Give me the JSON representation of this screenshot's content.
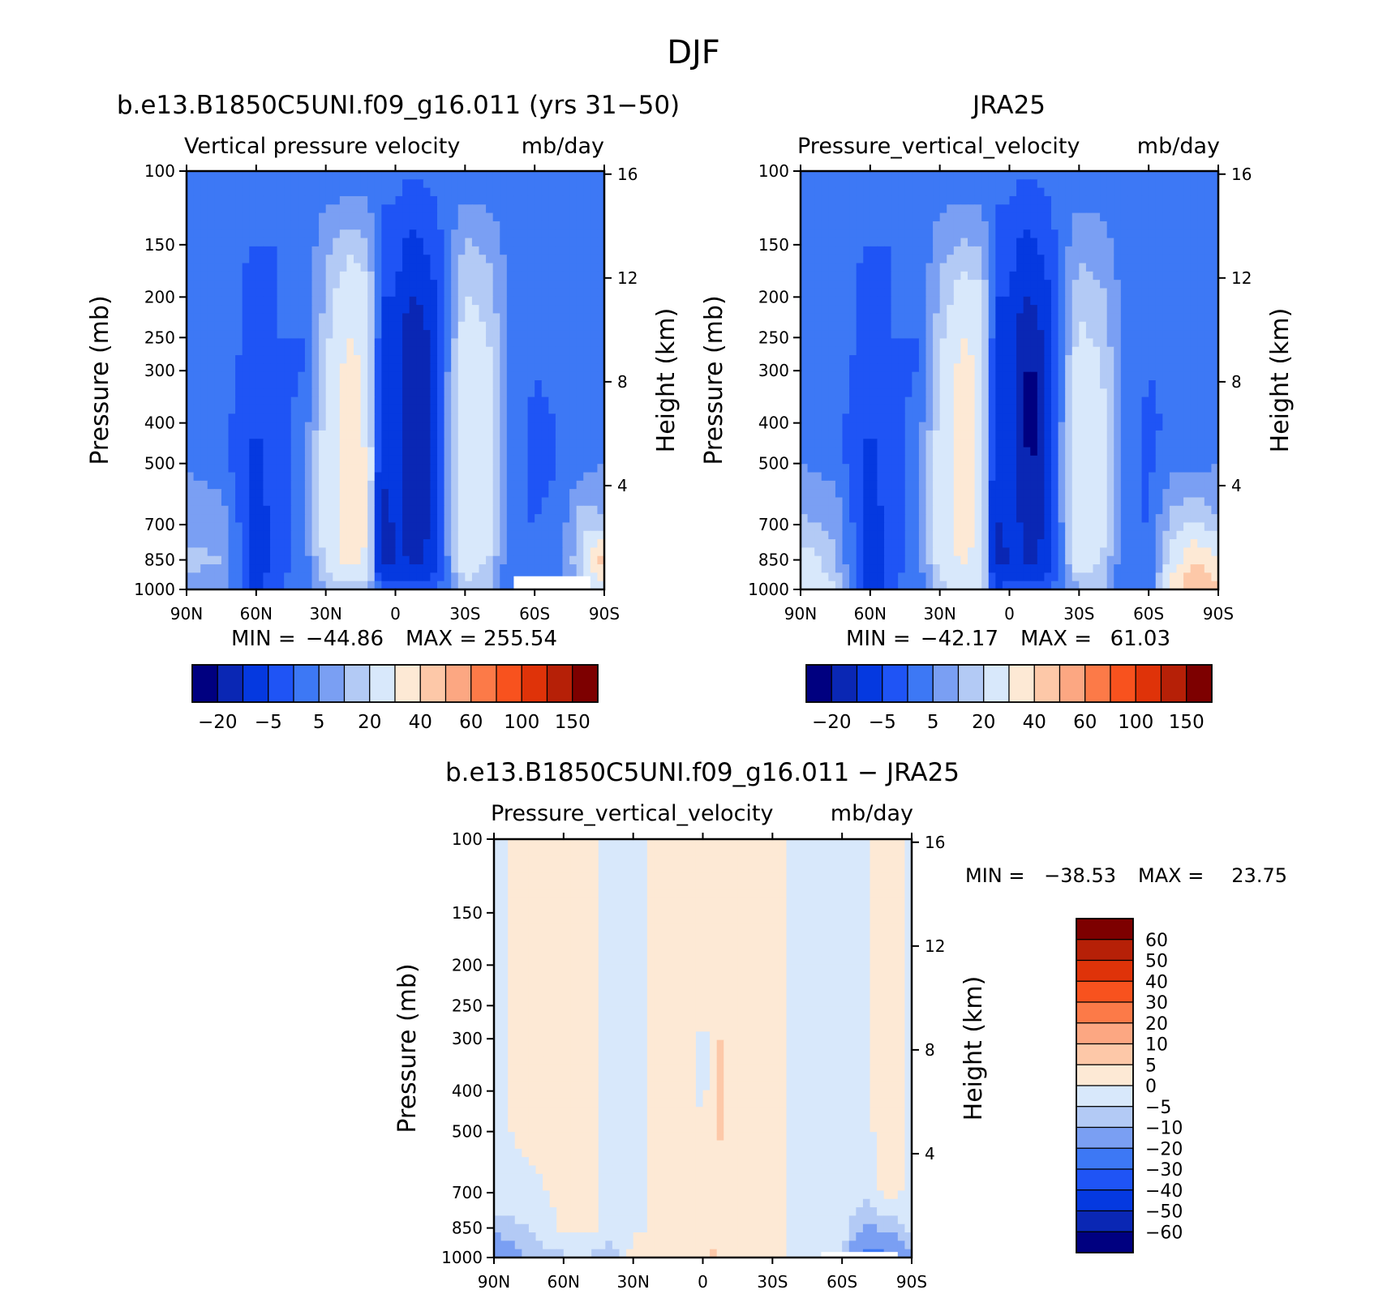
{
  "figure": {
    "title": "DJF",
    "season": "DJF"
  },
  "palettes": {
    "abs": [
      "#000080",
      "#0a27b4",
      "#0539e0",
      "#1f54f5",
      "#3d78f5",
      "#7a9ff3",
      "#b3caf5",
      "#d8e8fb",
      "#fde9d5",
      "#fdc8a8",
      "#fca782",
      "#fc7a48",
      "#f8521e",
      "#df3309",
      "#b62007",
      "#7d0000"
    ],
    "diff": [
      "#000080",
      "#0a27b4",
      "#0539e0",
      "#1f54f5",
      "#3d78f5",
      "#7a9ff3",
      "#b3caf5",
      "#d8e8fb",
      "#fde9d5",
      "#fdc8a8",
      "#fca782",
      "#fc7a48",
      "#f8521e",
      "#df3309",
      "#b62007",
      "#7d0000"
    ]
  },
  "chart_data": [
    {
      "id": "model",
      "type": "heatmap",
      "title": "b.e13.B1850C5UNI.f09_g16.011 (yrs 31−50)",
      "variable": "Vertical pressure velocity",
      "units": "mb/day",
      "xlabel": "",
      "ylabel": "Pressure (mb)",
      "ylabel_right": "Height (km)",
      "x_ticks": [
        "90N",
        "60N",
        "30N",
        "0",
        "30S",
        "60S",
        "90S"
      ],
      "y_ticks": [
        "100",
        "150",
        "200",
        "250",
        "300",
        "400",
        "500",
        "700",
        "850",
        "1000"
      ],
      "y_ticks_right": [
        "16",
        "12",
        "8",
        "4"
      ],
      "xlim": [
        90,
        -90
      ],
      "ylim": [
        1000,
        100
      ],
      "yscale": "log",
      "min_label": "MIN =",
      "min_value": "−44.86",
      "max_label": "MAX =",
      "max_value": "255.54",
      "colorbar": {
        "orientation": "horizontal",
        "labels": [
          "−20",
          "−5",
          "5",
          "20",
          "40",
          "60",
          "100",
          "150"
        ]
      },
      "missing_region": {
        "lat_from": -51,
        "lat_to": -84,
        "p_from": 930,
        "p_to": 1000
      },
      "lat": [
        90,
        75,
        60,
        50,
        40,
        30,
        20,
        12,
        6,
        0,
        -6,
        -12,
        -20,
        -30,
        -40,
        -50,
        -60,
        -70,
        -80,
        -90
      ],
      "pres": [
        1000,
        850,
        700,
        500,
        400,
        300,
        250,
        200,
        150,
        100
      ],
      "values": [
        [
          4,
          2,
          -12,
          -5,
          -4,
          5,
          5,
          6,
          -4,
          -5,
          -5,
          -4,
          -4,
          5,
          5,
          -5,
          -5,
          -4,
          8,
          12
        ],
        [
          6,
          5,
          -15,
          -6,
          -4,
          12,
          24,
          18,
          -25,
          -20,
          -20,
          -22,
          -6,
          18,
          10,
          -5,
          -5,
          -4,
          10,
          40
        ],
        [
          3,
          4,
          -14,
          -6,
          -4,
          14,
          26,
          22,
          -30,
          -18,
          -22,
          -24,
          -6,
          20,
          15,
          -5,
          -5,
          -4,
          8,
          6
        ],
        [
          0,
          -3,
          -12,
          -6,
          -4,
          14,
          24,
          20,
          -18,
          -8,
          -26,
          -26,
          -6,
          20,
          14,
          -3,
          -6,
          -5,
          -2,
          0
        ],
        [
          -2,
          -3,
          -10,
          -6,
          -4,
          12,
          24,
          18,
          -16,
          -10,
          -30,
          -30,
          -6,
          20,
          14,
          -3,
          -6,
          -5,
          -2,
          0
        ],
        [
          -2,
          -3,
          -8,
          -6,
          -5,
          10,
          24,
          18,
          -14,
          -12,
          -30,
          -28,
          -6,
          18,
          12,
          -2,
          -5,
          -4,
          -2,
          0
        ],
        [
          -2,
          -3,
          -6,
          -5,
          -5,
          8,
          20,
          16,
          -12,
          -12,
          -26,
          -24,
          -6,
          14,
          10,
          -2,
          -5,
          -4,
          -2,
          0
        ],
        [
          -3,
          -4,
          -6,
          -5,
          -5,
          6,
          16,
          12,
          -10,
          -10,
          -20,
          -18,
          -6,
          10,
          8,
          -2,
          -4,
          -4,
          -2,
          0
        ],
        [
          -3,
          -4,
          -5,
          -5,
          -5,
          4,
          8,
          6,
          -6,
          -6,
          -12,
          -10,
          -5,
          6,
          4,
          -3,
          -4,
          -4,
          -3,
          -2
        ],
        [
          -4,
          -4,
          -4,
          -4,
          -4,
          -4,
          -4,
          -4,
          -4,
          -4,
          -4,
          -4,
          -4,
          -4,
          -4,
          -4,
          -4,
          -4,
          -4,
          -4
        ]
      ]
    },
    {
      "id": "obs",
      "type": "heatmap",
      "title": "JRA25",
      "variable": "Pressure_vertical_velocity",
      "units": "mb/day",
      "xlabel": "",
      "ylabel": "Pressure (mb)",
      "ylabel_right": "Height (km)",
      "x_ticks": [
        "90N",
        "60N",
        "30N",
        "0",
        "30S",
        "60S",
        "90S"
      ],
      "y_ticks": [
        "100",
        "150",
        "200",
        "250",
        "300",
        "400",
        "500",
        "700",
        "850",
        "1000"
      ],
      "y_ticks_right": [
        "16",
        "12",
        "8",
        "4"
      ],
      "xlim": [
        90,
        -90
      ],
      "ylim": [
        1000,
        100
      ],
      "yscale": "log",
      "min_label": "MIN =",
      "min_value": "−42.17",
      "max_label": "MAX =",
      "max_value": "61.03",
      "colorbar": {
        "orientation": "horizontal",
        "labels": [
          "−20",
          "−5",
          "5",
          "20",
          "40",
          "60",
          "100",
          "150"
        ]
      },
      "lat": [
        90,
        75,
        60,
        50,
        40,
        30,
        20,
        12,
        6,
        0,
        -6,
        -12,
        -20,
        -30,
        -40,
        -50,
        -60,
        -70,
        -80,
        -90
      ],
      "pres": [
        1000,
        850,
        700,
        500,
        400,
        300,
        250,
        200,
        150,
        100
      ],
      "values": [
        [
          22,
          10,
          -15,
          -5,
          -4,
          8,
          12,
          10,
          -10,
          -5,
          -5,
          -4,
          -4,
          5,
          5,
          -5,
          -5,
          25,
          40,
          30
        ],
        [
          14,
          6,
          -16,
          -6,
          -4,
          14,
          22,
          16,
          -25,
          -20,
          -20,
          -22,
          -6,
          16,
          10,
          -5,
          -5,
          12,
          30,
          20
        ],
        [
          6,
          4,
          -14,
          -6,
          -4,
          14,
          24,
          18,
          -22,
          -14,
          -22,
          -24,
          -6,
          18,
          12,
          -5,
          -5,
          8,
          10,
          6
        ],
        [
          0,
          -2,
          -12,
          -6,
          -4,
          14,
          24,
          18,
          -18,
          -12,
          -28,
          -30,
          -6,
          18,
          12,
          -3,
          -6,
          -2,
          -2,
          0
        ],
        [
          -2,
          -3,
          -10,
          -6,
          -4,
          12,
          24,
          18,
          -16,
          -12,
          -32,
          -34,
          -6,
          18,
          12,
          -3,
          -6,
          -4,
          -2,
          0
        ],
        [
          -2,
          -3,
          -8,
          -6,
          -5,
          10,
          24,
          18,
          -14,
          -14,
          -30,
          -30,
          -6,
          16,
          10,
          -2,
          -5,
          -4,
          -2,
          0
        ],
        [
          -2,
          -3,
          -6,
          -5,
          -5,
          8,
          20,
          16,
          -12,
          -12,
          -26,
          -24,
          -6,
          12,
          8,
          -2,
          -5,
          -4,
          -2,
          0
        ],
        [
          -3,
          -4,
          -6,
          -5,
          -5,
          6,
          14,
          12,
          -10,
          -10,
          -20,
          -18,
          -6,
          8,
          6,
          -2,
          -4,
          -4,
          -2,
          0
        ],
        [
          -3,
          -4,
          -5,
          -5,
          -5,
          3,
          6,
          4,
          -6,
          -6,
          -12,
          -10,
          -5,
          4,
          2,
          -3,
          -4,
          -4,
          -3,
          -2
        ],
        [
          -4,
          -4,
          -4,
          -4,
          -4,
          -4,
          -4,
          -4,
          -4,
          -4,
          -4,
          -4,
          -4,
          -4,
          -4,
          -4,
          -4,
          -4,
          -4,
          -4
        ]
      ]
    },
    {
      "id": "diff",
      "type": "heatmap",
      "title": "b.e13.B1850C5UNI.f09_g16.011 − JRA25",
      "variable": "Pressure_vertical_velocity",
      "units": "mb/day",
      "xlabel": "",
      "ylabel": "Pressure (mb)",
      "ylabel_right": "Height (km)",
      "x_ticks": [
        "90N",
        "60N",
        "30N",
        "0",
        "30S",
        "60S",
        "90S"
      ],
      "y_ticks": [
        "100",
        "150",
        "200",
        "250",
        "300",
        "400",
        "500",
        "700",
        "850",
        "1000"
      ],
      "y_ticks_right": [
        "16",
        "12",
        "8",
        "4"
      ],
      "xlim": [
        90,
        -90
      ],
      "ylim": [
        1000,
        100
      ],
      "yscale": "log",
      "min_label": "MIN =",
      "min_value": "−38.53",
      "max_label": "MAX =",
      "max_value": "23.75",
      "colorbar": {
        "orientation": "vertical",
        "labels": [
          "60",
          "50",
          "40",
          "30",
          "20",
          "10",
          "5",
          "0",
          "−5",
          "−10",
          "−20",
          "−30",
          "−40",
          "−50",
          "−60"
        ]
      },
      "missing_region": {
        "lat_from": -51,
        "lat_to": -84,
        "p_from": 970,
        "p_to": 1000
      },
      "lat": [
        90,
        75,
        60,
        50,
        40,
        30,
        20,
        12,
        6,
        0,
        -6,
        -12,
        -20,
        -30,
        -40,
        -50,
        -60,
        -70,
        -80,
        -90
      ],
      "pres": [
        1000,
        850,
        700,
        500,
        400,
        300,
        250,
        200,
        150,
        100
      ],
      "values": [
        [
          -18,
          -8,
          -6,
          -6,
          -8,
          2,
          2,
          2,
          3,
          3,
          6,
          2,
          2,
          2,
          -1,
          -2,
          -3,
          -25,
          -20,
          -12
        ],
        [
          -8,
          -5,
          1,
          2,
          -3,
          -1,
          1,
          2,
          2,
          2,
          4,
          2,
          2,
          2,
          -1,
          -1,
          -2,
          -12,
          -8,
          -4
        ],
        [
          -2,
          -1,
          1,
          1,
          -1,
          -1,
          1,
          2,
          2,
          1,
          4,
          2,
          2,
          2,
          -1,
          -1,
          -1,
          -3,
          2,
          -1
        ],
        [
          -1,
          1,
          1,
          1,
          -1,
          -1,
          1,
          2,
          2,
          1,
          6,
          3,
          2,
          2,
          -1,
          -1,
          -1,
          -1,
          2,
          -1
        ],
        [
          -1,
          1,
          1,
          1,
          -1,
          -1,
          1,
          2,
          2,
          -2,
          6,
          3,
          2,
          2,
          -1,
          -1,
          -1,
          -1,
          2,
          -1
        ],
        [
          -1,
          1,
          1,
          1,
          -1,
          -1,
          1,
          2,
          2,
          -3,
          6,
          3,
          2,
          2,
          -1,
          -1,
          -1,
          -1,
          2,
          -1
        ],
        [
          -1,
          1,
          1,
          1,
          -1,
          -1,
          1,
          2,
          2,
          6,
          2,
          2,
          2,
          2,
          -1,
          -1,
          -1,
          -1,
          2,
          -1
        ],
        [
          -1,
          1,
          1,
          1,
          -1,
          -1,
          1,
          2,
          2,
          2,
          2,
          2,
          2,
          2,
          -1,
          -1,
          -1,
          -1,
          2,
          -1
        ],
        [
          -1,
          1,
          1,
          1,
          -1,
          -1,
          1,
          2,
          2,
          2,
          2,
          2,
          2,
          2,
          -1,
          -1,
          -1,
          -1,
          2,
          -1
        ],
        [
          -1,
          1,
          1,
          1,
          -1,
          -1,
          1,
          2,
          2,
          2,
          2,
          2,
          2,
          2,
          -1,
          -1,
          -1,
          -1,
          2,
          -1
        ]
      ]
    }
  ]
}
